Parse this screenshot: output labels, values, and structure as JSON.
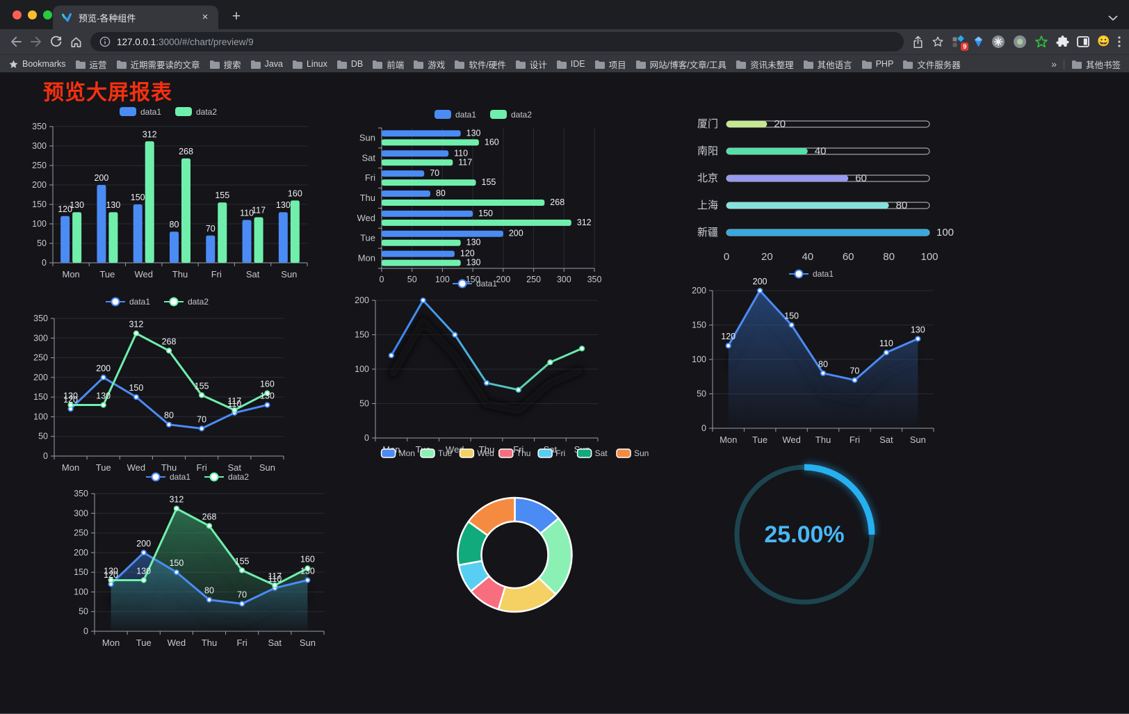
{
  "browser": {
    "tab_title": "预览-各种组件",
    "tab_close_glyph": "×",
    "new_tab_glyph": "+",
    "url_host": "127.0.0.1",
    "url_rest": ":3000/#/chart/preview/9",
    "extensions_badge": "9",
    "traffic_lights": {
      "close": "#ff5f57",
      "minimize": "#febc2e",
      "zoom": "#28c840"
    },
    "bookmarks_bar": {
      "manager_label": "Bookmarks",
      "folders": [
        "运营",
        "近期需要读的文章",
        "搜索",
        "Java",
        "Linux",
        "DB",
        "前端",
        "游戏",
        "软件/硬件",
        "设计",
        "IDE",
        "项目",
        "网站/博客/文章/工具",
        "资讯未整理",
        "其他语言",
        "PHP",
        "文件服务器"
      ],
      "overflow_chevron": "»",
      "other_bookmarks": "其他书签"
    }
  },
  "page": {
    "title": "预览大屏报表",
    "title_color": "#f5310f",
    "background": "#141419"
  },
  "chart_data": [
    {
      "id": "bar-vertical",
      "type": "bar",
      "categories": [
        "Mon",
        "Tue",
        "Wed",
        "Thu",
        "Fri",
        "Sat",
        "Sun"
      ],
      "series": [
        {
          "name": "data1",
          "color": "#4b8bf4",
          "values": [
            120,
            200,
            150,
            80,
            70,
            110,
            130
          ]
        },
        {
          "name": "data2",
          "color": "#70efac",
          "values": [
            130,
            130,
            312,
            268,
            155,
            117,
            160
          ]
        }
      ],
      "ylim": [
        0,
        350
      ],
      "ytick_step": 50,
      "legend_position": "top",
      "grid": true
    },
    {
      "id": "bar-horizontal",
      "type": "bar-horizontal",
      "categories": [
        "Mon",
        "Tue",
        "Wed",
        "Thu",
        "Fri",
        "Sat",
        "Sun"
      ],
      "series": [
        {
          "name": "data1",
          "color": "#4b8bf4",
          "values": [
            120,
            200,
            150,
            80,
            70,
            110,
            130
          ]
        },
        {
          "name": "data2",
          "color": "#70efac",
          "values": [
            130,
            130,
            312,
            268,
            155,
            117,
            160
          ]
        }
      ],
      "xlim": [
        0,
        350
      ],
      "xtick_step": 50,
      "legend_position": "top",
      "grid": true
    },
    {
      "id": "capsule-bars",
      "type": "capsule",
      "categories": [
        "厦门",
        "南阳",
        "北京",
        "上海",
        "新疆"
      ],
      "values": [
        20,
        40,
        60,
        80,
        100
      ],
      "colors": [
        "#c5e88f",
        "#55e0a7",
        "#9899f0",
        "#85e2da",
        "#36a9e0"
      ],
      "xlim": [
        0,
        100
      ],
      "xticks": [
        0,
        20,
        40,
        60,
        80,
        100
      ]
    },
    {
      "id": "line-two",
      "type": "line",
      "categories": [
        "Mon",
        "Tue",
        "Wed",
        "Thu",
        "Fri",
        "Sat",
        "Sun"
      ],
      "series": [
        {
          "name": "data1",
          "color": "#4b8bf4",
          "values": [
            120,
            200,
            150,
            80,
            70,
            110,
            130
          ]
        },
        {
          "name": "data2",
          "color": "#70efac",
          "values": [
            130,
            130,
            312,
            268,
            155,
            117,
            160
          ]
        }
      ],
      "ylim": [
        0,
        350
      ],
      "ytick_step": 50,
      "labels": true,
      "legend_position": "top"
    },
    {
      "id": "line-gradient",
      "type": "line",
      "categories": [
        "Mon",
        "Tue",
        "Wed",
        "Thu",
        "Fri",
        "Sat",
        "Sun"
      ],
      "series": [
        {
          "name": "data1",
          "color": "#4b8bf4",
          "gradient": [
            "#3b82f2",
            "#47a6e6",
            "#58cdb4",
            "#6cf0a6"
          ],
          "values": [
            120,
            200,
            150,
            80,
            70,
            110,
            130
          ]
        }
      ],
      "ylim": [
        0,
        200
      ],
      "ytick_step": 50,
      "labels": false,
      "shadow": true,
      "shadow_opacity": 0.85
    },
    {
      "id": "area-one",
      "type": "line",
      "categories": [
        "Mon",
        "Tue",
        "Wed",
        "Thu",
        "Fri",
        "Sat",
        "Sun"
      ],
      "series": [
        {
          "name": "data1",
          "color": "#4b8bf4",
          "area": "blue",
          "values": [
            120,
            200,
            150,
            80,
            70,
            110,
            130
          ]
        }
      ],
      "ylim": [
        0,
        200
      ],
      "ytick_step": 50,
      "labels": true,
      "shadow": true,
      "shadow_opacity": 0.45
    },
    {
      "id": "area-two",
      "type": "line",
      "categories": [
        "Mon",
        "Tue",
        "Wed",
        "Thu",
        "Fri",
        "Sat",
        "Sun"
      ],
      "series": [
        {
          "name": "data1",
          "color": "#4b8bf4",
          "area": "blue",
          "values": [
            120,
            200,
            150,
            80,
            70,
            110,
            130
          ]
        },
        {
          "name": "data2",
          "color": "#70efac",
          "area": "green",
          "values": [
            130,
            130,
            312,
            268,
            155,
            117,
            160
          ]
        }
      ],
      "ylim": [
        0,
        350
      ],
      "ytick_step": 50,
      "labels": true,
      "shadow": true,
      "shadow_opacity": 0.35
    },
    {
      "id": "pie-week",
      "type": "pie",
      "categories": [
        "Mon",
        "Tue",
        "Wed",
        "Thu",
        "Fri",
        "Sat",
        "Sun"
      ],
      "values": [
        120,
        200,
        150,
        80,
        70,
        110,
        130
      ],
      "colors": [
        "#4b8bf4",
        "#8bf0b4",
        "#f5d063",
        "#f76e7f",
        "#58cff2",
        "#10aa7d",
        "#f58b40"
      ],
      "inner_radius": 48,
      "outer_radius": 82,
      "legend_position": "top"
    },
    {
      "id": "gauge-percent",
      "type": "gauge",
      "value": 25,
      "max": 100,
      "label": "25.00%",
      "bar_color": "#27b0f0",
      "track_color": "#1c4550",
      "text_color": "#49b7f5"
    }
  ]
}
